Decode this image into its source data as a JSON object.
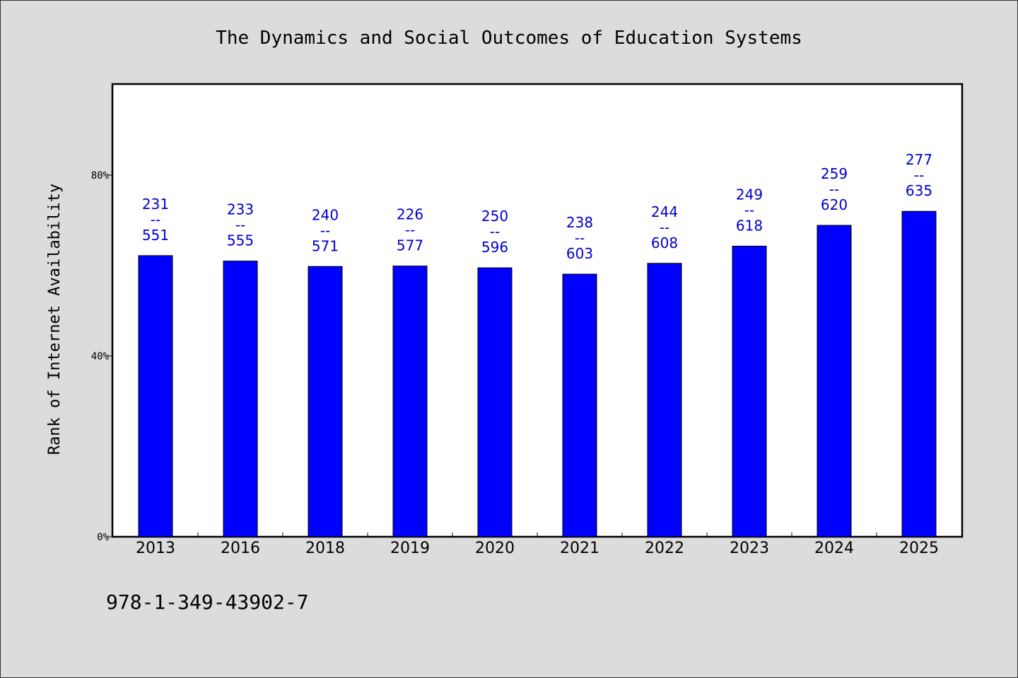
{
  "chart_data": {
    "type": "bar",
    "title": "The Dynamics and Social Outcomes of Education Systems",
    "ylabel": "Rank of Internet Availability",
    "xlabel": "",
    "ylim": [
      0,
      100
    ],
    "yticks": [
      0,
      40,
      80
    ],
    "ytick_labels": [
      "0%",
      "40%",
      "80%"
    ],
    "grid": false,
    "bar_color": "#0000ff",
    "label_color": "#0000cc",
    "categories": [
      "2013",
      "2016",
      "2018",
      "2019",
      "2020",
      "2021",
      "2022",
      "2023",
      "2024",
      "2025"
    ],
    "values": [
      62.2,
      61.0,
      59.8,
      59.9,
      59.5,
      58.1,
      60.5,
      64.3,
      68.9,
      72.0
    ],
    "bar_labels": [
      [
        "231",
        "--",
        "551"
      ],
      [
        "233",
        "--",
        "555"
      ],
      [
        "240",
        "--",
        "571"
      ],
      [
        "226",
        "--",
        "577"
      ],
      [
        "250",
        "--",
        "596"
      ],
      [
        "238",
        "--",
        "603"
      ],
      [
        "244",
        "--",
        "608"
      ],
      [
        "249",
        "--",
        "618"
      ],
      [
        "259",
        "--",
        "620"
      ],
      [
        "277",
        "--",
        "635"
      ]
    ]
  },
  "footer": {
    "isbn": "978-1-349-43902-7"
  }
}
